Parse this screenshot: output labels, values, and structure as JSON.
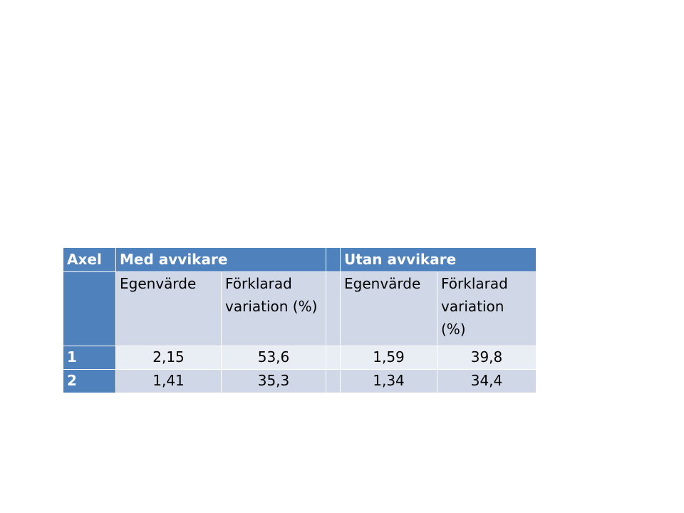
{
  "table": {
    "header": {
      "axel": "Axel",
      "group_with": "Med avvikare",
      "group_without": "Utan avvikare"
    },
    "subheader": {
      "eigenvalue_with": "Egenvärde",
      "explained_with": "Förklarad variation (%)",
      "eigenvalue_without": "Egenvärde",
      "explained_without": "Förklarad variation (%)"
    },
    "rows": [
      {
        "axis": "1",
        "eigen_with": "2,15",
        "var_with": "53,6",
        "eigen_without": "1,59",
        "var_without": "39,8"
      },
      {
        "axis": "2",
        "eigen_with": "1,41",
        "var_with": "35,3",
        "eigen_without": "1,34",
        "var_without": "34,4"
      }
    ]
  },
  "colors": {
    "header_blue": "#4f81bd",
    "band_dark": "#d0d8e8",
    "band_light": "#e9edf4"
  }
}
